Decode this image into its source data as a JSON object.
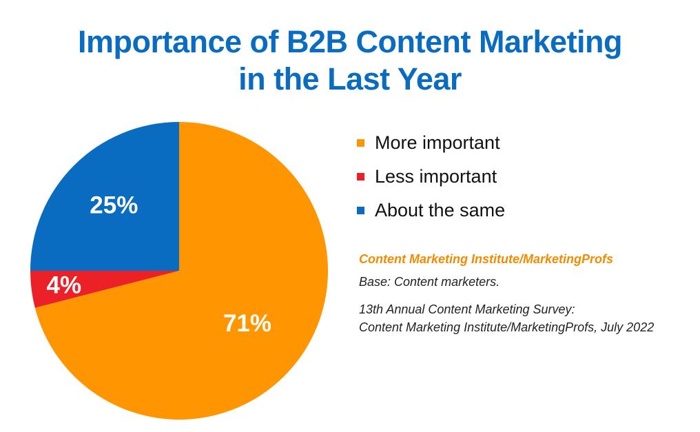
{
  "title": {
    "line1": "Importance of B2B Content Marketing",
    "line2": "in the Last Year"
  },
  "chart_data": {
    "type": "pie",
    "title": "Importance of B2B Content Marketing in the Last Year",
    "slices": [
      {
        "label": "More important",
        "value": 71,
        "display": "71%",
        "color": "#ff9500"
      },
      {
        "label": "Less important",
        "value": 4,
        "display": "4%",
        "color": "#ec2027"
      },
      {
        "label": "About the same",
        "value": 25,
        "display": "25%",
        "color": "#0a6cc1"
      }
    ],
    "legend_position": "right"
  },
  "legend": {
    "items": [
      {
        "label": "More important",
        "color": "#ff9500"
      },
      {
        "label": "Less important",
        "color": "#ec2027"
      },
      {
        "label": "About the same",
        "color": "#0a6cc1"
      }
    ]
  },
  "source": {
    "org": "Content Marketing Institute/MarketingProfs",
    "base": "Base: Content marketers.",
    "line1": "13th Annual Content Marketing Survey:",
    "line2": "Content Marketing Institute/MarketingProfs, July 2022"
  }
}
